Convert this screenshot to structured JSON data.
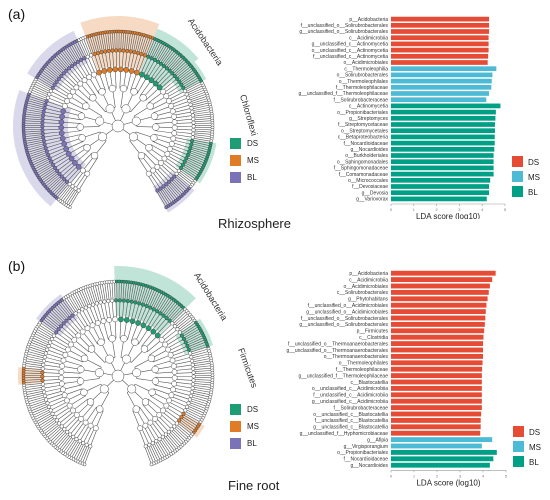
{
  "colors": {
    "DS": "#e64b35",
    "MS": "#4dbbd5",
    "BL": "#00a087",
    "tree_DS": "#1e9d74",
    "tree_MS": "#e07b27",
    "tree_BL": "#7b73b8"
  },
  "panels": [
    {
      "letter": "(a)",
      "title": "Rhizosphere",
      "clade_labels": [
        "Acidobacteria",
        "Chloroflexi"
      ],
      "legend": [
        {
          "label": "DS",
          "key": "tree_DS"
        },
        {
          "label": "MS",
          "key": "tree_MS"
        },
        {
          "label": "BL",
          "key": "tree_BL"
        }
      ]
    },
    {
      "letter": "(b)",
      "title": "Fine root",
      "clade_labels": [
        "Acidobacteria",
        "Firmicutes"
      ],
      "legend": [
        {
          "label": "DS",
          "key": "tree_DS"
        },
        {
          "label": "MS",
          "key": "tree_MS"
        },
        {
          "label": "BL",
          "key": "tree_BL"
        }
      ]
    }
  ],
  "chart_data": [
    {
      "type": "bar",
      "orientation": "horizontal",
      "xlabel": "LDA score (log10)",
      "xlim": [
        0,
        5
      ],
      "legend": [
        "DS",
        "MS",
        "BL"
      ],
      "legend_position": "bottom-right",
      "categories": [
        "p__Acidobacteria",
        "f__unclassified_o__Solirubrobacterales",
        "g__unclassified_o__Solirubrobacterales",
        "c__Acidimicrobiia",
        "g__unclassified_c__Actinomycetia",
        "o__unclassified_c__Actinomycetia",
        "f__unclassified_c__Actinomycetia",
        "o__Acidimicrobiales",
        "c__Thermoleophilia",
        "o__Solirubrobacterales",
        "o__Thermoleophilales",
        "f__Thermoleophilaceae",
        "g__unclassified_f__Thermoleophilaceae",
        "f__Solirubrobacteraceae",
        "c__Actinomycetia",
        "o__Propionibacteriales",
        "g__Streptomyces",
        "f__Streptomycetaceae",
        "o__Streptomycetales",
        "c__Betaproteobacteria",
        "f__Nocardioidaceae",
        "g__Nocardioides",
        "o__Burkholderiales",
        "o__Sphingomonadales",
        "f__Sphingomonadaceae",
        "f__Comamonadaceae",
        "o__Micrococcales",
        "f__Devosiaceae",
        "g__Devosia",
        "g__Variovorax"
      ],
      "groups": [
        "DS",
        "DS",
        "DS",
        "DS",
        "DS",
        "DS",
        "DS",
        "DS",
        "MS",
        "MS",
        "MS",
        "MS",
        "MS",
        "MS",
        "BL",
        "BL",
        "BL",
        "BL",
        "BL",
        "BL",
        "BL",
        "BL",
        "BL",
        "BL",
        "BL",
        "BL",
        "BL",
        "BL",
        "BL",
        "BL"
      ],
      "values": [
        4.3,
        4.3,
        4.3,
        4.28,
        4.28,
        4.28,
        4.26,
        4.24,
        4.62,
        4.45,
        4.42,
        4.4,
        4.3,
        4.18,
        4.8,
        4.6,
        4.58,
        4.56,
        4.56,
        4.55,
        4.55,
        4.53,
        4.5,
        4.5,
        4.5,
        4.5,
        4.35,
        4.3,
        4.3,
        4.2
      ]
    },
    {
      "type": "bar",
      "orientation": "horizontal",
      "xlabel": "LDA score (log10)",
      "xlim": [
        0,
        5
      ],
      "legend": [
        "DS",
        "MS",
        "BL"
      ],
      "legend_position": "bottom-right",
      "categories": [
        "p__Acidobacteria",
        "c__Acidimicrobiia",
        "o__Acidimicrobiales",
        "c__Solirubrobacterales",
        "g__Phytohabitans",
        "f__unclassified_o__Acidimicrobiales",
        "g__unclassified_o__Acidimicrobiales",
        "f__unclassified_o__Solirubrobacterales",
        "g__unclassified_o__Solirubrobacterales",
        "p__Firmicutes",
        "c__Clostridia",
        "f__unclassified_o__Thermoanaerobacterales",
        "g__unclassified_o__Thermoanaerobacterales",
        "o__Thermoanaerobacterales",
        "o__Thermoleophilales",
        "f__Thermoleophilaceae",
        "g__unclassified_f__Thermoleophilaceae",
        "c__Blastocatellia",
        "o__unclassified_c__Acidimicrobiia",
        "f__unclassified_c__Acidimicrobiia",
        "g__unclassified_c__Acidimicrobiia",
        "f__Solirubrobacteraceae",
        "o__unclassified_c__Blastocatellia",
        "f__unclassified_c__Blastocatellia",
        "g__unclassified_c__Blastocatellia",
        "g__unclassified_f__Hyphomicrobiaceae",
        "g__Afipia",
        "g__Virgisporangium",
        "o__Propionibacteriales",
        "f__Nocardioidaceae",
        "g__Nocardioides"
      ],
      "groups": [
        "DS",
        "DS",
        "DS",
        "DS",
        "DS",
        "DS",
        "DS",
        "DS",
        "DS",
        "DS",
        "DS",
        "DS",
        "DS",
        "DS",
        "DS",
        "DS",
        "DS",
        "DS",
        "DS",
        "DS",
        "DS",
        "DS",
        "DS",
        "DS",
        "DS",
        "DS",
        "MS",
        "MS",
        "BL",
        "BL",
        "BL"
      ],
      "values": [
        4.55,
        4.4,
        4.3,
        4.25,
        4.2,
        4.15,
        4.12,
        4.1,
        4.08,
        4.05,
        4.02,
        4.0,
        4.0,
        4.0,
        3.98,
        3.96,
        3.95,
        3.95,
        3.95,
        3.95,
        3.95,
        3.95,
        3.92,
        3.9,
        3.9,
        3.88,
        4.4,
        3.95,
        4.6,
        4.45,
        4.3
      ]
    }
  ]
}
